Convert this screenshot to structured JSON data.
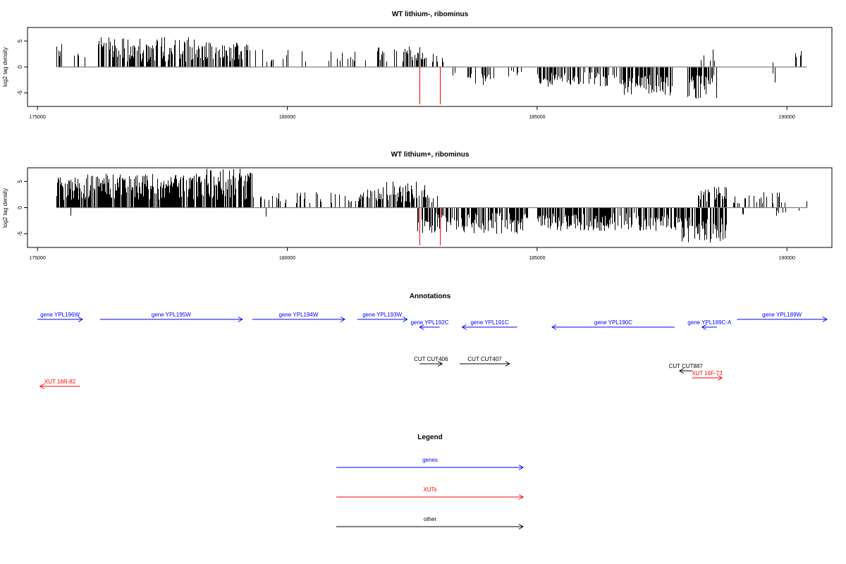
{
  "colors": {
    "gene": "#0000ff",
    "xut": "#ff0000",
    "other": "#000000",
    "axis": "#000000",
    "baseline": "#808080"
  },
  "chart_data": [
    {
      "type": "bar",
      "title": "WT lithium-, ribominus",
      "ylabel": "log2 tag density",
      "xlim": [
        174800,
        190900
      ],
      "ylim": [
        -7.6,
        7.6
      ],
      "xticks": [
        175000,
        180000,
        185000,
        190000
      ],
      "yticks": [
        5,
        0,
        -5
      ],
      "ytick_labels": [
        "5",
        "0",
        "-5"
      ],
      "baseline_x": [
        175400,
        190400
      ],
      "red_marks": [
        {
          "x": 182650,
          "value": -7.2
        },
        {
          "x": 183050,
          "value": -7.2
        }
      ],
      "bar_regions": [
        {
          "from": 175380,
          "to": 175500,
          "sign": 1,
          "count": 6,
          "max": 4.6,
          "min": 1.0
        },
        {
          "from": 175700,
          "to": 175950,
          "sign": 1,
          "count": 4,
          "max": 3.0,
          "min": 1.0
        },
        {
          "from": 176200,
          "to": 178200,
          "sign": 1,
          "count": 150,
          "max": 5.8,
          "min": 1.0
        },
        {
          "from": 178200,
          "to": 179250,
          "sign": 1,
          "count": 60,
          "max": 4.8,
          "min": 1.0
        },
        {
          "from": 179300,
          "to": 180450,
          "sign": 1,
          "count": 14,
          "max": 3.5,
          "min": 1.0
        },
        {
          "from": 180800,
          "to": 181600,
          "sign": 1,
          "count": 12,
          "max": 3.0,
          "min": 1.0
        },
        {
          "from": 181800,
          "to": 182800,
          "sign": 1,
          "count": 45,
          "max": 4.0,
          "min": 1.0
        },
        {
          "from": 182850,
          "to": 183150,
          "sign": 1,
          "count": 8,
          "max": 3.0,
          "min": 1.0
        },
        {
          "from": 183300,
          "to": 183450,
          "sign": -1,
          "count": 3,
          "max": 2.0,
          "min": 0.8
        },
        {
          "from": 183550,
          "to": 184200,
          "sign": -1,
          "count": 18,
          "max": 3.5,
          "min": 1.0
        },
        {
          "from": 184400,
          "to": 184750,
          "sign": -1,
          "count": 6,
          "max": 2.0,
          "min": 0.5
        },
        {
          "from": 185000,
          "to": 186700,
          "sign": -1,
          "count": 95,
          "max": 3.8,
          "min": 1.0
        },
        {
          "from": 186700,
          "to": 187700,
          "sign": -1,
          "count": 90,
          "max": 5.5,
          "min": 1.5
        },
        {
          "from": 188000,
          "to": 188600,
          "sign": -1,
          "count": 40,
          "max": 6.2,
          "min": 1.5
        },
        {
          "from": 188250,
          "to": 188650,
          "sign": 1,
          "count": 5,
          "max": 3.5,
          "min": 1.0
        },
        {
          "from": 189700,
          "to": 189800,
          "sign": -1,
          "count": 2,
          "max": 3.2,
          "min": 1.0
        },
        {
          "from": 189700,
          "to": 189800,
          "sign": 1,
          "count": 1,
          "max": 1.0,
          "min": 0.8
        },
        {
          "from": 190150,
          "to": 190400,
          "sign": 1,
          "count": 5,
          "max": 3.3,
          "min": 1.0
        }
      ]
    },
    {
      "type": "bar",
      "title": "WT lithium+, ribominus",
      "ylabel": "log2 tag density",
      "xlim": [
        174800,
        190900
      ],
      "ylim": [
        -7.6,
        7.6
      ],
      "xticks": [
        175000,
        180000,
        185000,
        190000
      ],
      "yticks": [
        5,
        0,
        -5
      ],
      "ytick_labels": [
        "5",
        "0",
        "-5"
      ],
      "baseline_x": [
        175400,
        190400
      ],
      "red_marks": [
        {
          "x": 182650,
          "value": -7.2
        },
        {
          "x": 183050,
          "value": -7.2
        }
      ],
      "bar_regions": [
        {
          "from": 175380,
          "to": 176000,
          "sign": 1,
          "count": 90,
          "max": 5.8,
          "min": 1.5
        },
        {
          "from": 175650,
          "to": 175700,
          "sign": -1,
          "count": 1,
          "max": 1.6,
          "min": 1.4
        },
        {
          "from": 176000,
          "to": 178300,
          "sign": 1,
          "count": 260,
          "max": 6.5,
          "min": 1.5
        },
        {
          "from": 178300,
          "to": 179300,
          "sign": 1,
          "count": 110,
          "max": 7.5,
          "min": 1.5
        },
        {
          "from": 179300,
          "to": 181400,
          "sign": 1,
          "count": 35,
          "max": 3.0,
          "min": 0.8
        },
        {
          "from": 179550,
          "to": 179600,
          "sign": -1,
          "count": 1,
          "max": 1.8,
          "min": 1.6
        },
        {
          "from": 181400,
          "to": 182800,
          "sign": 1,
          "count": 90,
          "max": 5.0,
          "min": 1.0
        },
        {
          "from": 182700,
          "to": 183000,
          "sign": 1,
          "count": 6,
          "max": 2.5,
          "min": 1.0
        },
        {
          "from": 182600,
          "to": 184800,
          "sign": -1,
          "count": 150,
          "max": 5.0,
          "min": 1.0
        },
        {
          "from": 185000,
          "to": 187800,
          "sign": -1,
          "count": 230,
          "max": 4.5,
          "min": 1.0
        },
        {
          "from": 187800,
          "to": 188800,
          "sign": -1,
          "count": 90,
          "max": 7.2,
          "min": 1.5
        },
        {
          "from": 188200,
          "to": 188800,
          "sign": 1,
          "count": 30,
          "max": 4.0,
          "min": 1.0
        },
        {
          "from": 188800,
          "to": 190400,
          "sign": 1,
          "count": 24,
          "max": 3.2,
          "min": 0.8
        },
        {
          "from": 189000,
          "to": 190300,
          "sign": -1,
          "count": 10,
          "max": 1.6,
          "min": 0.5
        }
      ]
    }
  ],
  "annotations": {
    "title": "Annotations",
    "items": [
      {
        "label": "gene YPL196W",
        "kind": "gene",
        "dir": "right",
        "from": 175000,
        "to": 175900,
        "row": 0
      },
      {
        "label": "gene YPL195W",
        "kind": "gene",
        "dir": "right",
        "from": 176250,
        "to": 179100,
        "row": 0
      },
      {
        "label": "gene YPL194W",
        "kind": "gene",
        "dir": "right",
        "from": 179300,
        "to": 181150,
        "row": 0
      },
      {
        "label": "gene YPL193W",
        "kind": "gene",
        "dir": "right",
        "from": 181400,
        "to": 182400,
        "row": 0
      },
      {
        "label": "gene YPL192C",
        "kind": "gene",
        "dir": "left",
        "from": 182650,
        "to": 183050,
        "row": 1
      },
      {
        "label": "gene YPL191C",
        "kind": "gene",
        "dir": "left",
        "from": 183500,
        "to": 184600,
        "row": 1
      },
      {
        "label": "gene YPL190C",
        "kind": "gene",
        "dir": "left",
        "from": 185300,
        "to": 187750,
        "row": 1
      },
      {
        "label": "gene YPL189C-A",
        "kind": "gene",
        "dir": "left",
        "from": 188300,
        "to": 188600,
        "row": 1
      },
      {
        "label": "gene YPL189W",
        "kind": "gene",
        "dir": "right",
        "from": 189000,
        "to": 190800,
        "row": 0
      },
      {
        "label": "CUT CUT406",
        "kind": "other",
        "dir": "right",
        "from": 182650,
        "to": 183100,
        "row": 2
      },
      {
        "label": "CUT CUT407",
        "kind": "other",
        "dir": "right",
        "from": 183450,
        "to": 184450,
        "row": 2
      },
      {
        "label": "CUT CUT887",
        "kind": "other",
        "dir": "left",
        "from": 187850,
        "to": 188100,
        "row": 3
      },
      {
        "label": "XUT 16F-73",
        "kind": "xut",
        "dir": "right",
        "from": 188100,
        "to": 188700,
        "row": 4
      },
      {
        "label": "XUT 16R-82",
        "kind": "xut",
        "dir": "left",
        "from": 175050,
        "to": 175850,
        "row": 5
      }
    ]
  },
  "legend": {
    "title": "Legend",
    "entries": [
      {
        "label": "genes",
        "kind": "gene"
      },
      {
        "label": "XUTs",
        "kind": "xut"
      },
      {
        "label": "other",
        "kind": "other"
      }
    ]
  }
}
